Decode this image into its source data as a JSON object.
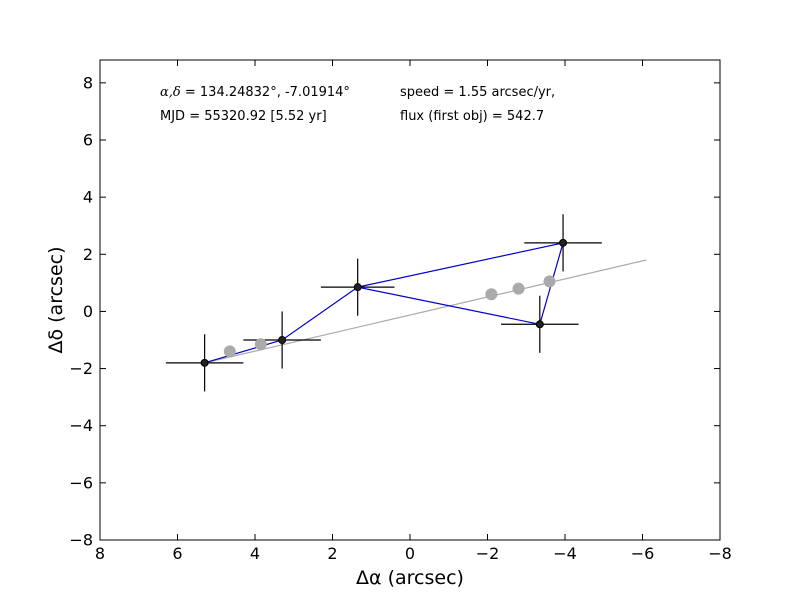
{
  "chart_data": {
    "type": "scatter",
    "xlabel": "Δα (arcsec)",
    "ylabel": "Δδ (arcsec)",
    "xlim": [
      8,
      -8
    ],
    "ylim": [
      -8,
      8.8
    ],
    "x_inverted": true,
    "x_ticks": [
      8,
      6,
      4,
      2,
      0,
      -2,
      -4,
      -6,
      -8
    ],
    "x_tick_labels": [
      "8",
      "6",
      "4",
      "2",
      "0",
      "−2",
      "−4",
      "−6",
      "−8"
    ],
    "y_ticks": [
      -8,
      -6,
      -4,
      -2,
      0,
      2,
      4,
      6,
      8
    ],
    "y_tick_labels": [
      "−8",
      "−6",
      "−4",
      "−2",
      "0",
      "2",
      "4",
      "6",
      "8"
    ],
    "grid": false,
    "colors": {
      "observed": "#222222",
      "connect_line": "#0000cc",
      "errorbar": "#000000",
      "model": "#aaaaaa"
    },
    "annotations": {
      "coords_symbol": "α,δ",
      "coords_value": " = 134.24832°, -7.01914°",
      "mjd": "MJD = 55320.92 [5.52 yr]",
      "speed": "speed = 1.55 arcsec/yr,",
      "flux": "flux (first obj) = 542.7"
    },
    "series": [
      {
        "kind": "observed",
        "x": [
          5.3,
          3.3,
          1.35,
          -3.35,
          -3.95
        ],
        "y": [
          -1.8,
          -1.0,
          0.85,
          -0.45,
          2.4
        ],
        "xerr": [
          1.0,
          1.0,
          0.95,
          1.0,
          1.0
        ],
        "yerr": [
          1.0,
          1.0,
          1.0,
          1.0,
          1.0
        ]
      },
      {
        "kind": "model",
        "x": [
          4.65,
          3.85,
          -2.1,
          -2.8,
          -3.6
        ],
        "y": [
          -1.4,
          -1.15,
          0.6,
          0.8,
          1.05
        ]
      }
    ],
    "connect_order": [
      0,
      1,
      2,
      3,
      4,
      2
    ],
    "model_line": {
      "x": [
        5.3,
        -6.1
      ],
      "y": [
        -1.8,
        1.8
      ]
    }
  }
}
